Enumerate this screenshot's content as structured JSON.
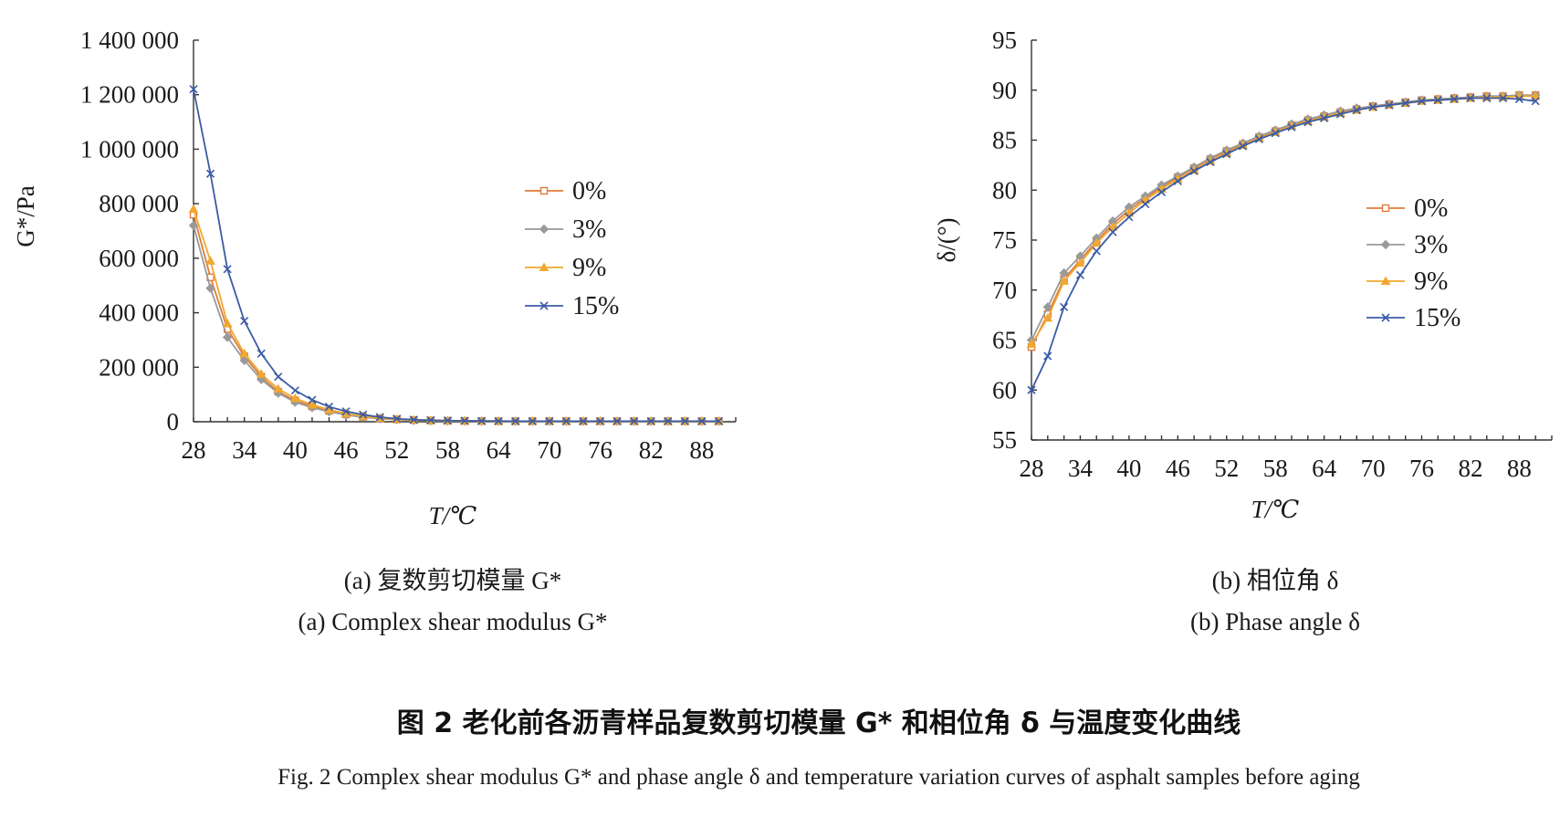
{
  "colors": {
    "s0": "#e07b39",
    "s3": "#9a9a9a",
    "s9": "#f0a830",
    "s15": "#3b5ba5"
  },
  "figure": {
    "title_cn": "图 2   老化前各沥青样品复数剪切模量 G* 和相位角 δ 与温度变化曲线",
    "title_en": "Fig. 2 Complex shear modulus G* and phase angle δ and temperature variation curves of asphalt samples before aging"
  },
  "panels": [
    {
      "caption_cn": "(a) 复数剪切模量 G*",
      "caption_en": "(a) Complex shear modulus G*"
    },
    {
      "caption_cn": "(b) 相位角 δ",
      "caption_en": "(b) Phase angle δ"
    }
  ],
  "chart_data": [
    {
      "type": "line",
      "xlabel": "T/℃",
      "ylabel": "G*/Pa",
      "xlim": [
        28,
        92
      ],
      "ylim": [
        0,
        1400000
      ],
      "xticks": [
        28,
        34,
        40,
        46,
        52,
        58,
        64,
        70,
        76,
        82,
        88
      ],
      "xtick_labels": [
        "28",
        "34",
        "40",
        "46",
        "52",
        "58",
        "64",
        "70",
        "76",
        "82",
        "88"
      ],
      "yticks": [
        0,
        200000,
        400000,
        600000,
        800000,
        1000000,
        1200000,
        1400000
      ],
      "ytick_labels": [
        "0",
        "200 000",
        "400 000",
        "600 000",
        "800 000",
        "1 000 000",
        "1 200 000",
        "1 400 000"
      ],
      "legend": "center-right",
      "grid": false,
      "x": [
        28,
        30,
        32,
        34,
        36,
        38,
        40,
        42,
        44,
        46,
        48,
        50,
        52,
        54,
        56,
        58,
        60,
        62,
        64,
        66,
        68,
        70,
        72,
        74,
        76,
        78,
        80,
        82,
        84,
        86,
        88,
        90
      ],
      "series": [
        {
          "name": "0%",
          "marker": "square",
          "values": [
            760000,
            530000,
            340000,
            240000,
            165000,
            110000,
            78000,
            56000,
            40000,
            27000,
            18000,
            12000,
            8500,
            6000,
            4500,
            3500,
            3000,
            2500,
            2000,
            2000,
            2000,
            2000,
            2000,
            2000,
            2000,
            2000,
            2000,
            2000,
            2000,
            2000,
            2000,
            2000
          ]
        },
        {
          "name": "3%",
          "marker": "diamond",
          "values": [
            720000,
            490000,
            310000,
            225000,
            155000,
            105000,
            72000,
            52000,
            37000,
            25000,
            17000,
            11000,
            8000,
            5500,
            4200,
            3300,
            2800,
            2400,
            2000,
            2000,
            2000,
            2000,
            2000,
            2000,
            2000,
            2000,
            2000,
            2000,
            2000,
            2000,
            2000,
            2000
          ]
        },
        {
          "name": "9%",
          "marker": "triangle",
          "values": [
            780000,
            590000,
            360000,
            250000,
            175000,
            120000,
            86000,
            62000,
            44000,
            30000,
            20000,
            13000,
            9000,
            6500,
            4800,
            3700,
            3100,
            2600,
            2100,
            2000,
            2000,
            2000,
            2000,
            2000,
            2000,
            2000,
            2000,
            2000,
            2000,
            2000,
            2000,
            2000
          ]
        },
        {
          "name": "15%",
          "marker": "x",
          "values": [
            1220000,
            910000,
            560000,
            370000,
            250000,
            165000,
            115000,
            80000,
            55000,
            38000,
            26000,
            17000,
            11000,
            7500,
            5500,
            4200,
            3400,
            2800,
            2300,
            2100,
            2000,
            2000,
            2000,
            2000,
            2000,
            2000,
            2000,
            2000,
            2000,
            2000,
            2000,
            2000
          ]
        }
      ]
    },
    {
      "type": "line",
      "xlabel": "T/℃",
      "ylabel": "δ/(°)",
      "xlim": [
        28,
        92
      ],
      "ylim": [
        55,
        95
      ],
      "xticks": [
        28,
        34,
        40,
        46,
        52,
        58,
        64,
        70,
        76,
        82,
        88
      ],
      "xtick_labels": [
        "28",
        "34",
        "40",
        "46",
        "52",
        "58",
        "64",
        "70",
        "76",
        "82",
        "88"
      ],
      "yticks": [
        55,
        60,
        65,
        70,
        75,
        80,
        85,
        90,
        95
      ],
      "ytick_labels": [
        "55",
        "60",
        "65",
        "70",
        "75",
        "80",
        "85",
        "90",
        "95"
      ],
      "legend": "center-right",
      "grid": false,
      "x": [
        28,
        30,
        32,
        34,
        36,
        38,
        40,
        42,
        44,
        46,
        48,
        50,
        52,
        54,
        56,
        58,
        60,
        62,
        64,
        66,
        68,
        70,
        72,
        74,
        76,
        78,
        80,
        82,
        84,
        86,
        88,
        90
      ],
      "series": [
        {
          "name": "0%",
          "marker": "square",
          "values": [
            64.3,
            67.6,
            71.1,
            73.0,
            74.9,
            76.6,
            78.0,
            79.2,
            80.3,
            81.3,
            82.2,
            83.1,
            83.9,
            84.6,
            85.3,
            85.9,
            86.5,
            87.0,
            87.4,
            87.8,
            88.1,
            88.4,
            88.6,
            88.8,
            89.0,
            89.1,
            89.2,
            89.3,
            89.4,
            89.4,
            89.5,
            89.5
          ]
        },
        {
          "name": "3%",
          "marker": "diamond",
          "values": [
            65.0,
            68.3,
            71.7,
            73.4,
            75.2,
            76.9,
            78.3,
            79.4,
            80.5,
            81.4,
            82.3,
            83.2,
            84.0,
            84.7,
            85.4,
            86.0,
            86.6,
            87.1,
            87.5,
            87.9,
            88.2,
            88.4,
            88.6,
            88.8,
            89.0,
            89.1,
            89.2,
            89.3,
            89.4,
            89.4,
            89.5,
            89.5
          ]
        },
        {
          "name": "9%",
          "marker": "triangle",
          "values": [
            64.6,
            67.2,
            70.9,
            72.7,
            74.7,
            76.3,
            77.7,
            79.0,
            80.1,
            81.1,
            82.0,
            82.9,
            83.7,
            84.5,
            85.2,
            85.8,
            86.4,
            86.9,
            87.3,
            87.7,
            88.0,
            88.3,
            88.5,
            88.7,
            88.9,
            89.0,
            89.1,
            89.2,
            89.3,
            89.3,
            89.4,
            89.4
          ]
        },
        {
          "name": "15%",
          "marker": "x",
          "values": [
            60.0,
            63.4,
            68.3,
            71.5,
            73.9,
            75.8,
            77.3,
            78.6,
            79.8,
            80.9,
            81.9,
            82.8,
            83.6,
            84.4,
            85.1,
            85.7,
            86.3,
            86.8,
            87.2,
            87.6,
            88.0,
            88.3,
            88.5,
            88.7,
            88.9,
            89.0,
            89.1,
            89.2,
            89.2,
            89.2,
            89.1,
            88.9
          ]
        }
      ]
    }
  ]
}
